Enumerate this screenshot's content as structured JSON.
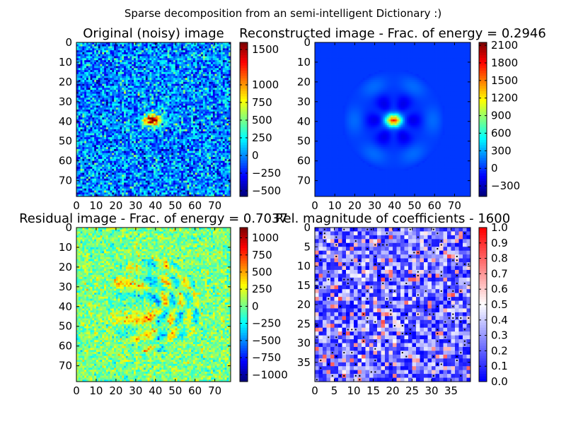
{
  "figure": {
    "suptitle": "Sparse decomposition from an semi-intelligent Dictionary :)"
  },
  "chart_data": [
    {
      "type": "heatmap",
      "title": "Original (noisy) image",
      "colormap": "jet",
      "xticks": [
        "0",
        "10",
        "20",
        "30",
        "40",
        "50",
        "60",
        "70"
      ],
      "yticks": [
        "0",
        "10",
        "20",
        "30",
        "40",
        "50",
        "60",
        "70"
      ],
      "xlim": [
        0,
        78
      ],
      "ylim": [
        78,
        0
      ],
      "colorbar": {
        "ticks": [
          "1500",
          "1000",
          "750",
          "500",
          "250",
          "0",
          "−250",
          "−500"
        ],
        "range": [
          -580,
          1600
        ]
      },
      "image_description": "noise field centered near 0 with a bright red blob at about (38, 39)"
    },
    {
      "type": "heatmap",
      "title": "Reconstructed image - Frac. of energy = 0.2946",
      "colormap": "jet",
      "xticks": [
        "0",
        "10",
        "20",
        "30",
        "40",
        "50",
        "60",
        "70"
      ],
      "yticks": [
        "0",
        "10",
        "20",
        "30",
        "40",
        "50",
        "60",
        "70"
      ],
      "xlim": [
        0,
        78
      ],
      "ylim": [
        78,
        0
      ],
      "colorbar": {
        "ticks": [
          "2100",
          "1800",
          "1500",
          "1200",
          "900",
          "600",
          "300",
          "0",
          "−300"
        ],
        "range": [
          -480,
          2150
        ]
      }
    },
    {
      "type": "heatmap",
      "title": "Residual image - Frac. of energy = 0.7037",
      "colormap": "jet",
      "xticks": [
        "0",
        "10",
        "20",
        "30",
        "40",
        "50",
        "60",
        "70"
      ],
      "yticks": [
        "0",
        "10",
        "20",
        "30",
        "40",
        "50",
        "60",
        "70"
      ],
      "xlim": [
        0,
        78
      ],
      "ylim": [
        78,
        0
      ],
      "colorbar": {
        "ticks": [
          "1000",
          "750",
          "500",
          "250",
          "0",
          "−250",
          "−500",
          "−750",
          "−1000"
        ],
        "range": [
          -1100,
          1150
        ]
      }
    },
    {
      "type": "heatmap",
      "title": "Rel. magnitude of coefficients - 1600",
      "colormap": "bwr",
      "xticks": [
        "0",
        "5",
        "10",
        "15",
        "20",
        "25",
        "30",
        "35"
      ],
      "yticks": [
        "0",
        "5",
        "10",
        "15",
        "20",
        "25",
        "30",
        "35"
      ],
      "xlim": [
        0,
        40
      ],
      "ylim": [
        40,
        0
      ],
      "colorbar": {
        "ticks": [
          "1.0",
          "0.9",
          "0.8",
          "0.7",
          "0.6",
          "0.5",
          "0.4",
          "0.3",
          "0.2",
          "0.1",
          "0.0"
        ],
        "range": [
          0,
          1
        ]
      }
    }
  ]
}
